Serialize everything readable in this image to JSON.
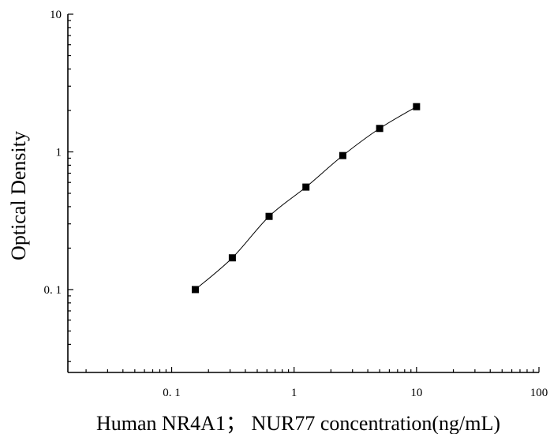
{
  "chart_data": {
    "type": "scatter",
    "xlabel": "Human NR4A1； NUR77 concentration(ng/mL)",
    "ylabel": "Optical Density",
    "x_scale": "log",
    "y_scale": "log",
    "xlim": [
      0.0142,
      100
    ],
    "ylim": [
      0.025,
      10
    ],
    "x_ticks": [
      {
        "value": 0.1,
        "label": "0. 1"
      },
      {
        "value": 1,
        "label": "1"
      },
      {
        "value": 10,
        "label": "10"
      },
      {
        "value": 100,
        "label": "100"
      }
    ],
    "y_ticks": [
      {
        "value": 0.1,
        "label": "0. 1"
      },
      {
        "value": 1,
        "label": "1"
      },
      {
        "value": 10,
        "label": "10"
      }
    ],
    "grid": false,
    "colors": {
      "marker": "#000000",
      "line": "#000000",
      "axis": "#000000"
    },
    "series": [
      {
        "x": [
          0.156,
          0.313,
          0.625,
          1.25,
          2.5,
          5,
          10
        ],
        "y": [
          0.1,
          0.17,
          0.34,
          0.555,
          0.94,
          1.48,
          2.13
        ],
        "marker": "square",
        "fit_curve": true
      }
    ]
  }
}
